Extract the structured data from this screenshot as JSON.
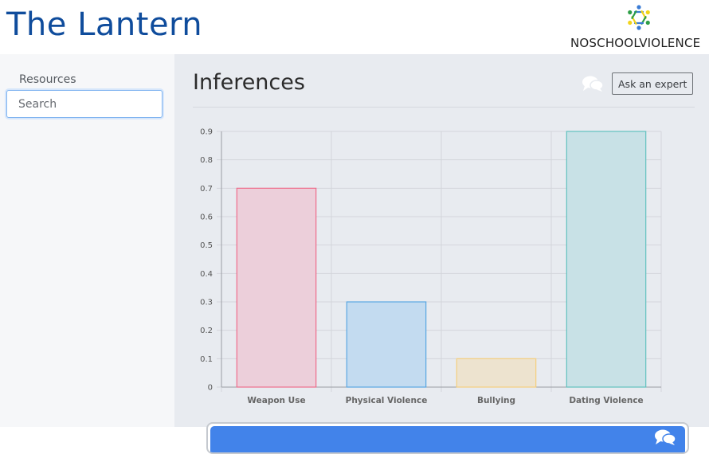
{
  "header": {
    "site_title": "The Lantern",
    "logo_text": "NOSCHOOLVIOLENCE",
    "logo_colors": [
      "#3a7bd5",
      "#f2d41b",
      "#2e9e47"
    ]
  },
  "sidebar": {
    "heading": "Resources",
    "search_placeholder": "Search"
  },
  "main": {
    "page_title": "Inferences",
    "ask_expert_label": "Ask an expert",
    "chat_icon": "chat-bubbles-icon"
  },
  "chat_bar": {
    "icon": "chat-bubbles-icon",
    "color": "#4283ea"
  },
  "chart_data": {
    "type": "bar",
    "categories": [
      "Weapon Use",
      "Physical Violence",
      "Bullying",
      "Dating Violence"
    ],
    "values": [
      0.7,
      0.3,
      0.1,
      0.9
    ],
    "ylim": [
      0,
      0.9
    ],
    "yticks": [
      "0",
      "0.1",
      "0.2",
      "0.3",
      "0.4",
      "0.5",
      "0.6",
      "0.7",
      "0.8",
      "0.9"
    ],
    "grid": true,
    "legend": "none",
    "bar_fills": [
      "#eccfda",
      "#c3dbf0",
      "#ede3cf",
      "#c8e1e6"
    ],
    "bar_strokes": [
      "#ee6d8c",
      "#5aa7e3",
      "#f5cf7e",
      "#62c1bf"
    ]
  }
}
